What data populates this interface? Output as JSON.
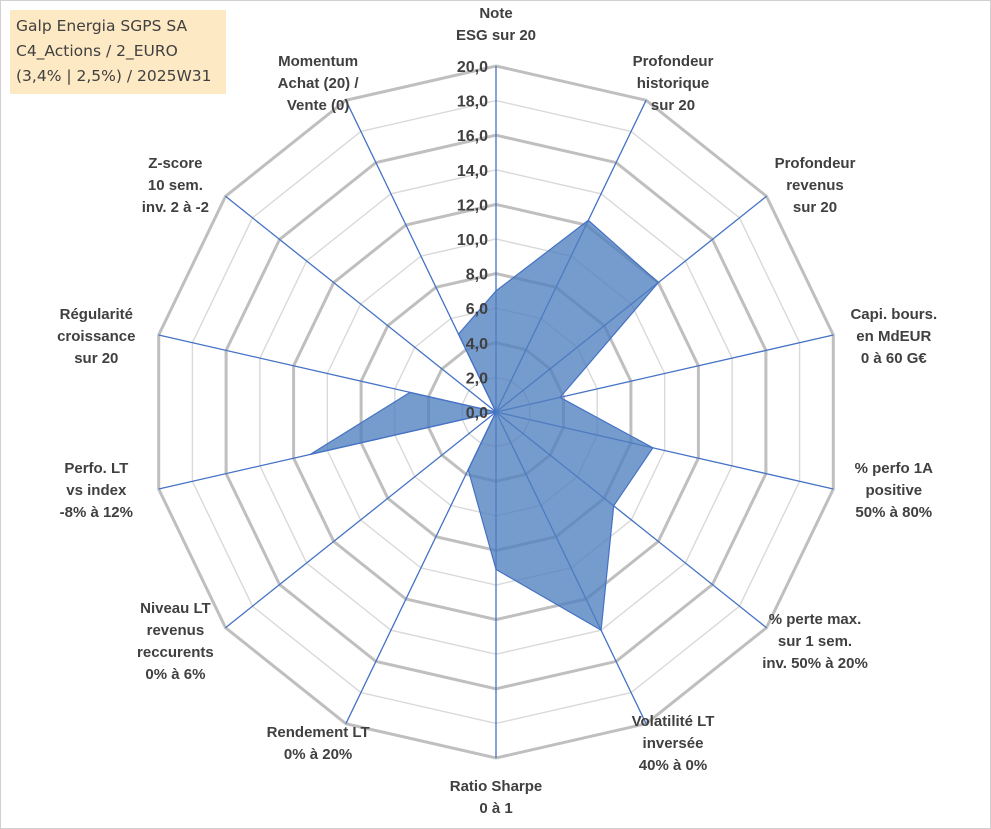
{
  "title_box": {
    "line1": "Galp Energia SGPS SA",
    "line2": "C4_Actions / 2_EURO",
    "line3": "(3,4% | 2,5%) / 2025W31"
  },
  "colors": {
    "grid_major": "#bfbfbf",
    "grid_minor": "#d9d9d9",
    "spoke": "#4472c4",
    "fill": "#4f7fbf",
    "title_bg": "#fde9c4",
    "text": "#404040"
  },
  "chart_data": {
    "type": "radar",
    "scale": {
      "min": 0,
      "max": 20,
      "step": 2
    },
    "tick_labels": [
      "0,0",
      "2,0",
      "4,0",
      "6,0",
      "8,0",
      "10,0",
      "12,0",
      "14,0",
      "16,0",
      "18,0",
      "20,0"
    ],
    "axes": [
      {
        "label": [
          "Note",
          "ESG sur 20"
        ],
        "value": 7.0
      },
      {
        "label": [
          "Profondeur",
          "historique",
          "sur 20"
        ],
        "value": 12.3
      },
      {
        "label": [
          "Profondeur",
          "revenus",
          "sur 20"
        ],
        "value": 12.0
      },
      {
        "label": [
          "Capi. bours.",
          "en MdEUR",
          "0 à 60 G€"
        ],
        "value": 3.8
      },
      {
        "label": [
          "% perfo 1A",
          "positive",
          "50% à 80%"
        ],
        "value": 9.3
      },
      {
        "label": [
          "% perte max.",
          "sur 1 sem.",
          "inv. 50% à 20%"
        ],
        "value": 8.7
      },
      {
        "label": [
          "Volatilité LT",
          "inversée",
          "40% à 0%"
        ],
        "value": 14.0
      },
      {
        "label": [
          "Ratio Sharpe",
          "0 à 1"
        ],
        "value": 9.1
      },
      {
        "label": [
          "Rendement LT",
          "0% à 20%"
        ],
        "value": 3.7
      },
      {
        "label": [
          "Niveau LT",
          "revenus",
          "reccurents",
          "0% à 6%"
        ],
        "value": 0.0
      },
      {
        "label": [
          "Perfo. LT",
          "vs index",
          "-8% à 12%"
        ],
        "value": 11.0
      },
      {
        "label": [
          "Régularité",
          "croissance",
          "sur 20"
        ],
        "value": 5.1
      },
      {
        "label": [
          "Z-score",
          "10 sem.",
          "inv. 2 à -2"
        ],
        "value": 0.0
      },
      {
        "label": [
          "Momentum",
          "Achat (20) /",
          "Vente (0)"
        ],
        "value": 5.0
      }
    ]
  }
}
